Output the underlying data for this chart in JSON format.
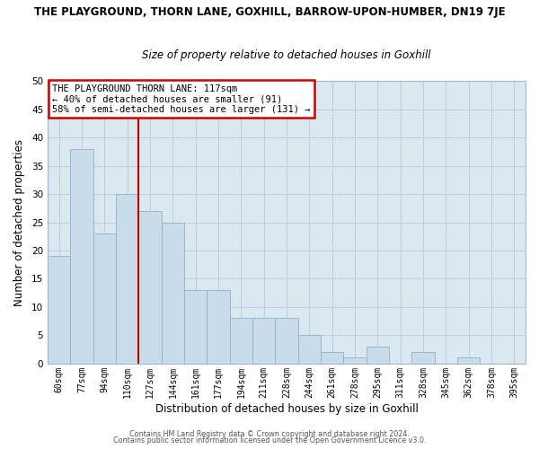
{
  "title": "THE PLAYGROUND, THORN LANE, GOXHILL, BARROW-UPON-HUMBER, DN19 7JE",
  "subtitle": "Size of property relative to detached houses in Goxhill",
  "xlabel": "Distribution of detached houses by size in Goxhill",
  "ylabel": "Number of detached properties",
  "bar_labels": [
    "60sqm",
    "77sqm",
    "94sqm",
    "110sqm",
    "127sqm",
    "144sqm",
    "161sqm",
    "177sqm",
    "194sqm",
    "211sqm",
    "228sqm",
    "244sqm",
    "261sqm",
    "278sqm",
    "295sqm",
    "311sqm",
    "328sqm",
    "345sqm",
    "362sqm",
    "378sqm",
    "395sqm"
  ],
  "bar_values": [
    19,
    38,
    23,
    30,
    27,
    25,
    13,
    13,
    8,
    8,
    8,
    5,
    2,
    1,
    3,
    0,
    2,
    0,
    1,
    0,
    0
  ],
  "bar_color": "#c9dcea",
  "bar_edge_color": "#8ab4cc",
  "vline_color": "#cc0000",
  "vline_x_index": 3,
  "ylim": [
    0,
    50
  ],
  "yticks": [
    0,
    5,
    10,
    15,
    20,
    25,
    30,
    35,
    40,
    45,
    50
  ],
  "annotation_title": "THE PLAYGROUND THORN LANE: 117sqm",
  "annotation_line1": "← 40% of detached houses are smaller (91)",
  "annotation_line2": "58% of semi-detached houses are larger (131) →",
  "annotation_box_facecolor": "#ffffff",
  "annotation_box_edgecolor": "#cc0000",
  "grid_color": "#c0cfe0",
  "plot_bg_color": "#dce8f0",
  "fig_bg_color": "#ffffff",
  "title_fontsize": 8.5,
  "subtitle_fontsize": 8.5,
  "footer1": "Contains HM Land Registry data © Crown copyright and database right 2024.",
  "footer2": "Contains public sector information licensed under the Open Government Licence v3.0."
}
